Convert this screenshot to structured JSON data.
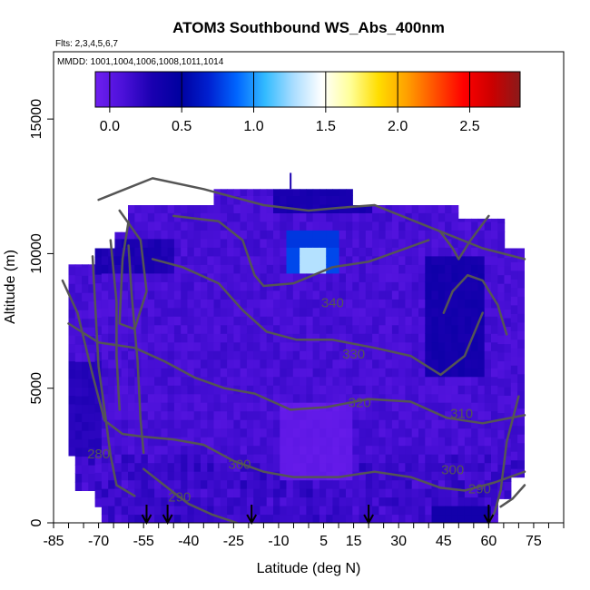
{
  "chart_data": {
    "type": "heatmap",
    "title": "ATOM3 Southbound WS_Abs_400nm",
    "flights_label": "Flts: 2,3,4,5,6,7",
    "dates_label": "MMDD: 1001,1004,1006,1008,1011,1014",
    "xlabel": "Latitude (deg N)",
    "ylabel": "Altitude (m)",
    "xlim": [
      -85,
      85
    ],
    "ylim": [
      0,
      17500
    ],
    "x_ticks": [
      -85,
      -70,
      -55,
      -40,
      -25,
      -10,
      5,
      15,
      30,
      45,
      60,
      75
    ],
    "y_ticks": [
      0,
      5000,
      10000,
      15000
    ],
    "colorbar": {
      "ticks": [
        0.0,
        0.5,
        1.0,
        1.5,
        2.0,
        2.5
      ],
      "tick_labels": [
        "0.0",
        "0.5",
        "1.0",
        "1.5",
        "2.0",
        "2.5"
      ],
      "range": [
        -0.1,
        2.85
      ],
      "colors": [
        "#6f1ff0",
        "#4a10d8",
        "#1a00b0",
        "#0000a0",
        "#0020d0",
        "#0066ff",
        "#33bbff",
        "#aaddff",
        "#ffffff",
        "#ffff99",
        "#ffdd00",
        "#ffa000",
        "#ff5000",
        "#ff0000",
        "#cc0000",
        "#8b1a1a"
      ]
    },
    "heatmap_base_color": "#5a1ae0",
    "regions": [
      {
        "kind": "high-value",
        "lat": [
          -8,
          10
        ],
        "alt": [
          9500,
          10400
        ],
        "value": 1.3
      },
      {
        "kind": "high-value",
        "lat": [
          -8,
          10
        ],
        "alt": [
          10400,
          11000
        ],
        "value": 0.8
      },
      {
        "kind": "low-value",
        "lat": [
          38,
          58
        ],
        "alt": [
          5500,
          10000
        ],
        "value": 0.35
      },
      {
        "kind": "low-value",
        "lat": [
          -10,
          20
        ],
        "alt": [
          11500,
          12400
        ],
        "value": 0.3
      },
      {
        "kind": "low-value",
        "lat": [
          -72,
          -45
        ],
        "alt": [
          9500,
          10500
        ],
        "value": 0.3
      }
    ],
    "contour_labels": [
      {
        "text": "340",
        "lat": 8,
        "alt": 8000
      },
      {
        "text": "330",
        "lat": 15,
        "alt": 6100
      },
      {
        "text": "320",
        "lat": 17,
        "alt": 4300
      },
      {
        "text": "310",
        "lat": 51,
        "alt": 3900
      },
      {
        "text": "300",
        "lat": 48,
        "alt": 1800
      },
      {
        "text": "290",
        "lat": 57,
        "alt": 1100
      },
      {
        "text": "300",
        "lat": -23,
        "alt": 2000
      },
      {
        "text": "280",
        "lat": -70,
        "alt": 2400
      },
      {
        "text": "290",
        "lat": -43,
        "alt": 800
      }
    ],
    "contour_color": "#555555",
    "arrows_latitude": [
      -54,
      -47,
      -19,
      20,
      60
    ]
  }
}
